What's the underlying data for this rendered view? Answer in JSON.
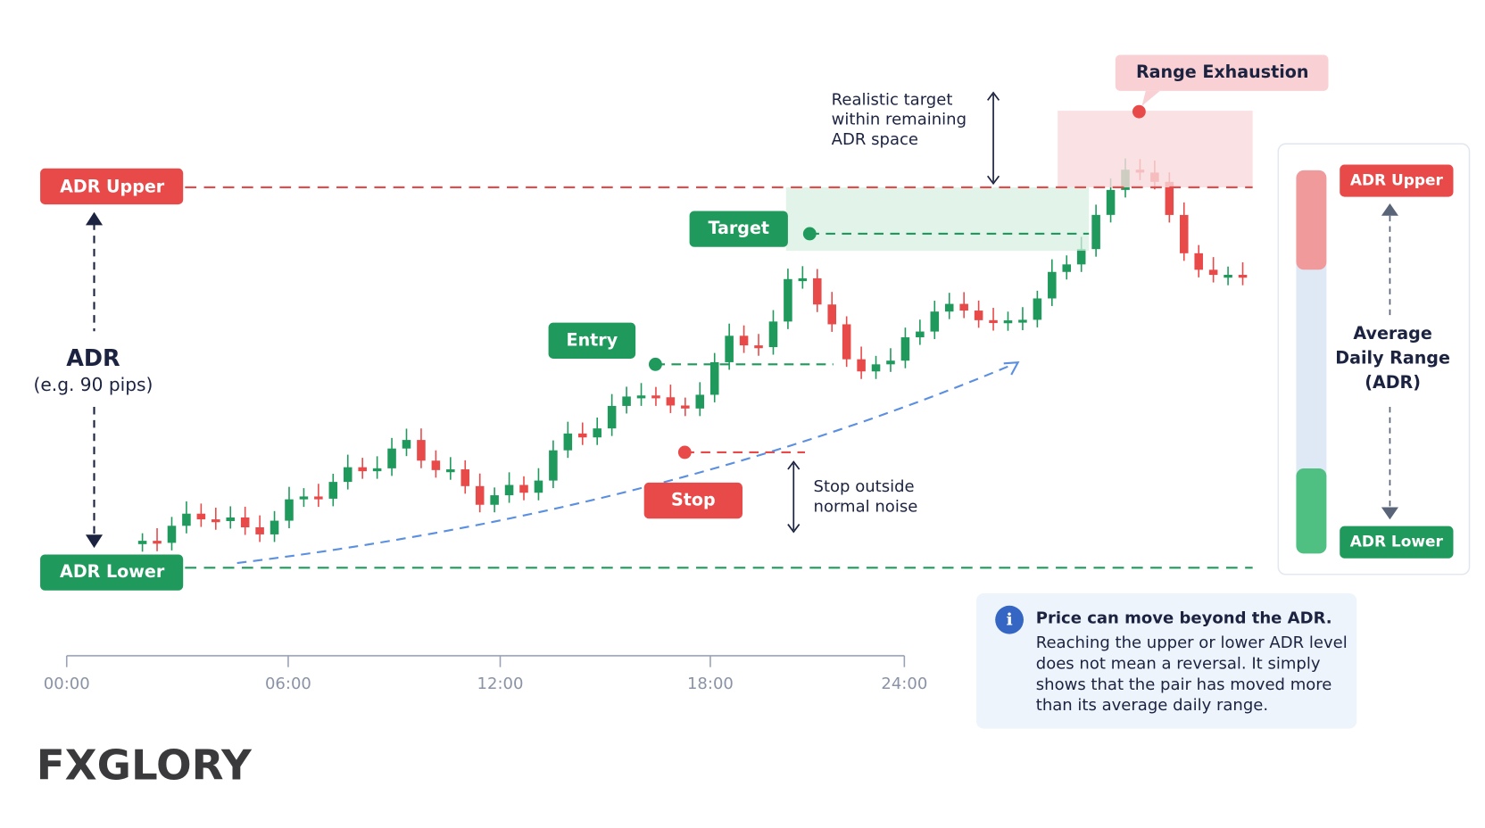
{
  "labels": {
    "adr_upper": "ADR Upper",
    "adr_lower": "ADR Lower",
    "adr": "ADR",
    "adr_example": "(e.g. 90 pips)",
    "target": "Target",
    "entry": "Entry",
    "stop": "Stop",
    "range_exhaustion": "Range Exhaustion"
  },
  "notes": {
    "realistic_target": [
      "Realistic target",
      "within remaining",
      "ADR space"
    ],
    "stop_outside": [
      "Stop outside",
      "normal noise"
    ]
  },
  "time_axis": [
    "00:00",
    "06:00",
    "12:00",
    "18:00",
    "24:00"
  ],
  "legend": {
    "upper": "ADR Upper",
    "lower": "ADR Lower",
    "title": [
      "Average",
      "Daily Range",
      "(ADR)"
    ]
  },
  "info": {
    "title": "Price can move beyond the ADR.",
    "body": [
      "Reaching the upper or lower ADR level",
      "does not mean a reversal. It simply",
      "shows that the pair has moved more",
      "than its average daily range."
    ]
  },
  "logo": "FXGLORY"
}
